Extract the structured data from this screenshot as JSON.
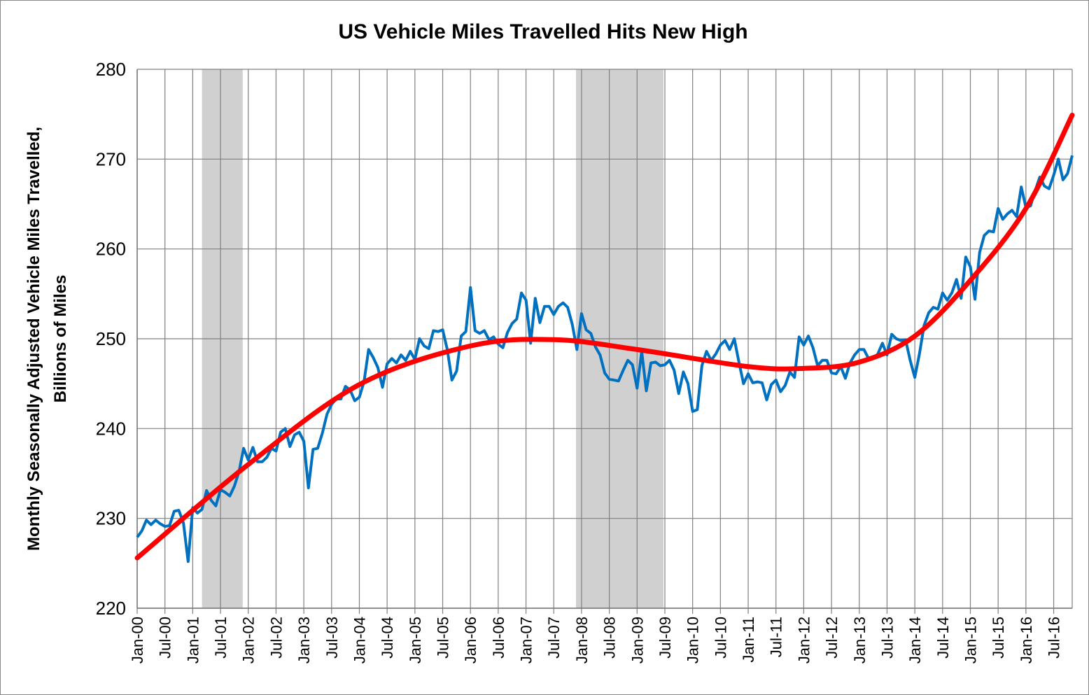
{
  "chart_data": {
    "type": "line",
    "title": "US Vehicle Miles Travelled Hits New High",
    "ylabel_line1": "Monthly Seasonally Adjusted Vehicle Miles Travelled,",
    "ylabel_line2": "Billions of Miles",
    "xlabel": "",
    "ylim": [
      220,
      280
    ],
    "yticks": [
      "220",
      "230",
      "240",
      "250",
      "260",
      "270",
      "280"
    ],
    "start": "Jan-00",
    "xtick_labels": [
      "Jan-00",
      "Jul-00",
      "Jan-01",
      "Jul-01",
      "Jan-02",
      "Jul-02",
      "Jan-03",
      "Jul-03",
      "Jan-04",
      "Jul-04",
      "Jan-05",
      "Jul-05",
      "Jan-06",
      "Jul-06",
      "Jan-07",
      "Jul-07",
      "Jan-08",
      "Jul-08",
      "Jan-09",
      "Jul-09",
      "Jan-10",
      "Jul-10",
      "Jan-11",
      "Jul-11",
      "Jan-12",
      "Jul-12",
      "Jan-13",
      "Jul-13",
      "Jan-14",
      "Jul-14",
      "Jan-15",
      "Jul-15",
      "Jan-16",
      "Jul-16"
    ],
    "grid": true,
    "recessions_month_index": [
      [
        14,
        22.8
      ],
      [
        94.8,
        113.7
      ]
    ],
    "colors": {
      "series": "#0070C0",
      "trend": "#FF0000",
      "recession": "#D0D0D0",
      "grid": "#808080"
    },
    "series": [
      {
        "name": "Vehicle miles travelled",
        "values": [
          227.9,
          228.6,
          229.8,
          229.3,
          229.8,
          229.4,
          229.1,
          229.2,
          230.8,
          230.9,
          229.5,
          225.2,
          231.2,
          230.6,
          231.0,
          233.1,
          232.0,
          231.4,
          233.2,
          232.9,
          232.5,
          233.6,
          235.2,
          237.8,
          236.5,
          237.9,
          236.3,
          236.3,
          236.8,
          237.8,
          237.5,
          239.6,
          240.0,
          238.0,
          239.3,
          239.6,
          238.6,
          233.4,
          237.7,
          237.8,
          239.5,
          241.6,
          242.7,
          243.3,
          243.3,
          244.7,
          244.3,
          243.1,
          243.5,
          245.2,
          248.8,
          247.9,
          246.8,
          244.6,
          247.2,
          247.8,
          247.3,
          248.2,
          247.6,
          248.6,
          247.7,
          250.0,
          249.2,
          248.9,
          250.9,
          250.8,
          251.0,
          248.8,
          245.4,
          246.4,
          250.3,
          250.8,
          255.7,
          250.9,
          250.6,
          250.9,
          249.9,
          250.2,
          249.4,
          249.0,
          250.7,
          251.7,
          252.2,
          255.1,
          254.3,
          249.5,
          254.5,
          251.8,
          253.6,
          253.6,
          252.7,
          253.6,
          254.0,
          253.5,
          251.6,
          248.8,
          252.8,
          251.0,
          250.6,
          249.1,
          248.2,
          246.2,
          245.5,
          245.4,
          245.3,
          246.5,
          247.6,
          247.1,
          244.5,
          248.6,
          244.2,
          247.3,
          247.4,
          247.0,
          247.1,
          247.6,
          246.5,
          243.9,
          246.3,
          245.0,
          241.9,
          242.1,
          247.0,
          248.6,
          247.6,
          248.3,
          249.3,
          249.8,
          248.8,
          250.0,
          247.4,
          245.0,
          246.1,
          245.1,
          245.2,
          245.1,
          243.2,
          244.9,
          245.4,
          244.1,
          244.8,
          246.3,
          245.7,
          250.2,
          249.3,
          250.3,
          249.0,
          247.0,
          247.6,
          247.6,
          246.2,
          246.1,
          246.9,
          245.6,
          247.3,
          248.2,
          248.8,
          248.8,
          247.8,
          247.8,
          248.3,
          249.5,
          248.2,
          250.5,
          250.0,
          249.8,
          249.9,
          247.6,
          245.7,
          248.3,
          251.5,
          252.9,
          253.5,
          253.3,
          255.1,
          254.3,
          255.1,
          256.6,
          254.5,
          259.1,
          258.0,
          254.4,
          259.6,
          261.5,
          262.0,
          261.9,
          264.5,
          263.3,
          263.9,
          264.3,
          263.6,
          266.9,
          264.6,
          264.8,
          266.5,
          268.0,
          267.0,
          266.7,
          268.2,
          270.0,
          267.7,
          268.4,
          270.4
        ]
      },
      {
        "name": "Trend",
        "month_index": [
          0,
          24,
          48,
          72,
          90,
          108,
          132,
          144,
          156,
          168,
          180,
          192,
          202
        ],
        "values": [
          225.6,
          236.0,
          244.9,
          249.2,
          249.9,
          248.8,
          246.9,
          246.7,
          247.4,
          250.3,
          256.5,
          264.5,
          274.9
        ]
      }
    ]
  }
}
